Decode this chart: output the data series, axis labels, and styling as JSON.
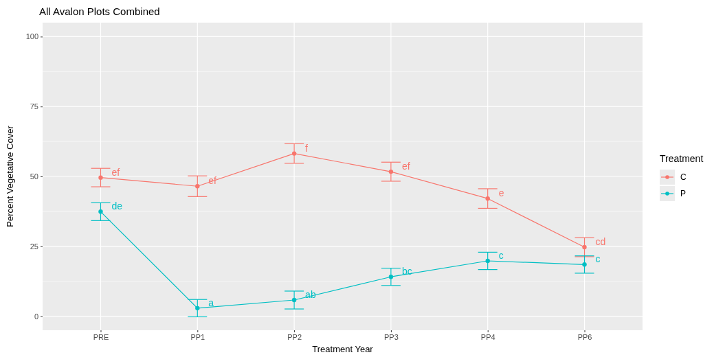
{
  "chart_data": {
    "type": "line",
    "title": "All Avalon Plots Combined",
    "xlabel": "Treatment Year",
    "ylabel": "Percent Vegetative Cover",
    "legend_title": "Treatment",
    "categories": [
      "PRE",
      "PP1",
      "PP2",
      "PP3",
      "PP4",
      "PP6"
    ],
    "series": [
      {
        "name": "C",
        "color": "#f8766d",
        "values": [
          49.6,
          46.5,
          58.2,
          51.7,
          42.1,
          24.7
        ],
        "errors": [
          3.3,
          3.7,
          3.5,
          3.4,
          3.5,
          3.4
        ],
        "value_labels": [
          "ef",
          "ef",
          "f",
          "ef",
          "e",
          "cd"
        ]
      },
      {
        "name": "P",
        "color": "#00bfc4",
        "values": [
          37.4,
          2.9,
          5.8,
          14.1,
          19.8,
          18.5
        ],
        "errors": [
          3.2,
          3.1,
          3.2,
          3.1,
          3.1,
          3.1
        ],
        "value_labels": [
          "de",
          "a",
          "ab",
          "bc",
          "c",
          "c"
        ]
      }
    ],
    "ylim": [
      -5,
      105
    ],
    "yticks": [
      0,
      25,
      50,
      75,
      100
    ],
    "grid": true,
    "legend": "right",
    "marker": "circle",
    "line_style": "solid"
  }
}
